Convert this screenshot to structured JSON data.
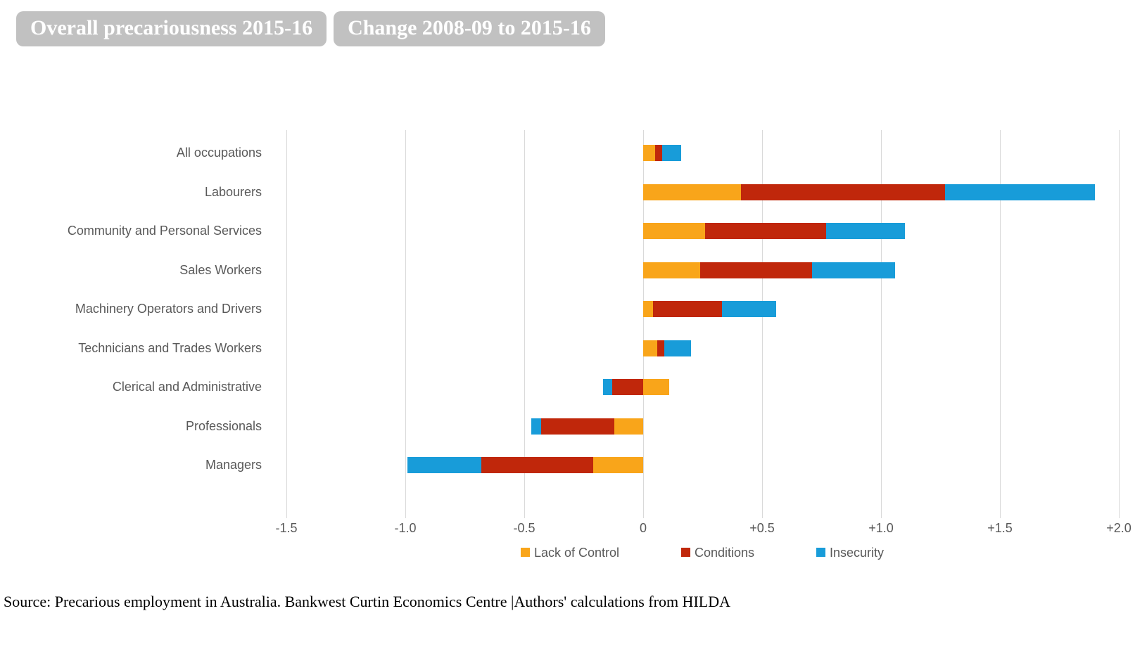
{
  "tabs": [
    {
      "label": "Overall precariousness 2015-16"
    },
    {
      "label": "Change 2008-09 to 2015-16"
    }
  ],
  "colors": {
    "lack_of_control": "#F9A51A",
    "conditions": "#C0270B",
    "insecurity": "#189CD9",
    "tab_bg": "#C1C1C1",
    "tab_text": "#FFFFFF",
    "grid": "#D9D9D9",
    "axis_text": "#595959"
  },
  "chart_data": {
    "type": "bar",
    "orientation": "horizontal",
    "stacked": true,
    "grid": true,
    "legend_position": "bottom",
    "xlim": [
      -1.5,
      2.0
    ],
    "categories": [
      "All occupations",
      "Labourers",
      "Community and Personal Services",
      "Sales Workers",
      "Machinery Operators and Drivers",
      "Technicians and Trades Workers",
      "Clerical and Administrative",
      "Professionals",
      "Managers"
    ],
    "series": [
      {
        "name": "Lack of Control",
        "color_key": "lack_of_control",
        "values": [
          0.05,
          0.41,
          0.26,
          0.24,
          0.04,
          0.06,
          0.11,
          -0.12,
          -0.21
        ]
      },
      {
        "name": "Conditions",
        "color_key": "conditions",
        "values": [
          0.03,
          0.86,
          0.51,
          0.47,
          0.29,
          0.03,
          -0.13,
          -0.31,
          -0.47
        ]
      },
      {
        "name": "Insecurity",
        "color_key": "insecurity",
        "values": [
          0.08,
          0.63,
          0.33,
          0.35,
          0.23,
          0.11,
          -0.04,
          -0.04,
          -0.31
        ]
      }
    ],
    "x_ticks": [
      {
        "label": "-1.5",
        "value": -1.5
      },
      {
        "label": "-1.0",
        "value": -1.0
      },
      {
        "label": "-0.5",
        "value": -0.5
      },
      {
        "label": "0",
        "value": 0.0
      },
      {
        "label": "+0.5",
        "value": 0.5
      },
      {
        "label": "+1.0",
        "value": 1.0
      },
      {
        "label": "+1.5",
        "value": 1.5
      },
      {
        "label": "+2.0",
        "value": 2.0
      }
    ]
  },
  "source_note": "Source: Precarious employment in Australia. Bankwest Curtin Economics Centre |Authors' calculations from HILDA"
}
